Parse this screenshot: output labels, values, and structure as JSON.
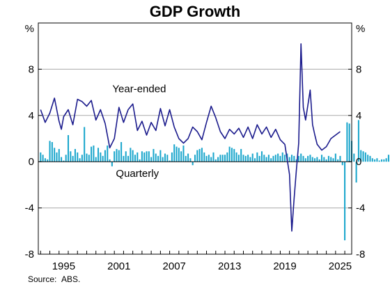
{
  "chart_data": {
    "type": "bar+line",
    "title": "GDP Growth",
    "y_unit_left": "%",
    "y_unit_right": "%",
    "ylim": [
      -8,
      12
    ],
    "yticks": [
      -8,
      -4,
      0,
      4,
      8
    ],
    "xlim": [
      1992.75,
      2026.75
    ],
    "xticks": [
      1995,
      2001,
      2007,
      2013,
      2019,
      2025
    ],
    "grid": true,
    "colors": {
      "year_ended": "#1a1a8c",
      "quarterly": "#1aa6cc",
      "grid": "#aaaaaa"
    },
    "series": [
      {
        "name": "Year-ended",
        "label_position": [
          2003.7,
          6.0
        ],
        "type": "line",
        "x": [
          1993.0,
          1993.5,
          1994.0,
          1994.5,
          1995.0,
          1995.25,
          1995.5,
          1996.0,
          1996.5,
          1997.0,
          1997.5,
          1998.0,
          1998.5,
          1999.0,
          1999.5,
          2000.0,
          2000.5,
          2001.0,
          2001.5,
          2002.0,
          2002.5,
          2003.0,
          2003.5,
          2004.0,
          2004.5,
          2005.0,
          2005.5,
          2006.0,
          2006.5,
          2007.0,
          2007.5,
          2008.0,
          2008.5,
          2009.0,
          2009.5,
          2010.0,
          2010.5,
          2011.0,
          2011.5,
          2012.0,
          2012.5,
          2013.0,
          2013.5,
          2014.0,
          2014.5,
          2015.0,
          2015.5,
          2016.0,
          2016.5,
          2017.0,
          2017.5,
          2018.0,
          2018.5,
          2019.0,
          2019.5,
          2020.0,
          2020.25,
          2020.5,
          2020.75,
          2021.0,
          2021.25,
          2021.5,
          2021.75,
          2022.0,
          2022.25,
          2022.5,
          2022.75,
          2023.0,
          2023.5,
          2024.0,
          2024.5,
          2025.0,
          2025.5
        ],
        "values": [
          4.5,
          3.4,
          4.2,
          5.5,
          3.5,
          2.8,
          3.9,
          4.5,
          3.2,
          5.4,
          5.2,
          4.8,
          5.3,
          3.6,
          4.5,
          3.3,
          1.2,
          2.0,
          4.7,
          3.4,
          4.5,
          5.0,
          2.7,
          3.5,
          2.3,
          3.4,
          2.7,
          4.6,
          3.1,
          4.5,
          3.0,
          2.0,
          1.6,
          2.0,
          3.0,
          2.6,
          1.9,
          3.4,
          4.8,
          3.8,
          2.6,
          2.0,
          2.8,
          2.4,
          2.9,
          2.1,
          3.0,
          2.0,
          3.2,
          2.4,
          3.0,
          2.1,
          2.8,
          1.9,
          1.5,
          -1.1,
          -6.0,
          -3.2,
          -0.7,
          1.6,
          10.2,
          4.7,
          3.6,
          4.9,
          6.2,
          3.2,
          2.3,
          1.5,
          1.0,
          1.3,
          2.0,
          2.3,
          2.6
        ]
      },
      {
        "name": "Quarterly",
        "label_position": [
          2003.5,
          -1.3
        ],
        "type": "bar",
        "x_start": 1993.0,
        "step": 0.25,
        "values": [
          0.8,
          0.6,
          0.3,
          0.2,
          1.8,
          1.7,
          1.2,
          0.8,
          1.1,
          0.4,
          0.1,
          0.6,
          2.3,
          0.9,
          0.5,
          1.1,
          0.8,
          0.3,
          0.6,
          3.0,
          0.7,
          0.6,
          1.3,
          1.4,
          0.4,
          1.2,
          0.8,
          0.5,
          1.0,
          1.4,
          0.2,
          -0.4,
          0.9,
          1.1,
          1.0,
          1.7,
          0.5,
          0.9,
          0.5,
          1.2,
          1.0,
          0.6,
          0.8,
          0.2,
          0.9,
          0.8,
          0.9,
          0.9,
          0.4,
          1.1,
          0.7,
          0.5,
          1.0,
          0.4,
          0.7,
          0.6,
          0.1,
          0.8,
          1.5,
          1.3,
          1.2,
          0.9,
          1.4,
          0.5,
          0.7,
          0.3,
          -0.3,
          0.6,
          1.0,
          1.1,
          1.2,
          0.8,
          0.5,
          0.6,
          0.4,
          0.8,
          0.2,
          0.4,
          0.6,
          0.6,
          0.6,
          0.8,
          1.3,
          1.2,
          1.1,
          0.8,
          0.6,
          1.1,
          0.6,
          0.5,
          0.6,
          0.4,
          0.7,
          0.3,
          0.8,
          0.5,
          0.9,
          0.6,
          0.4,
          0.6,
          0.3,
          0.5,
          0.6,
          0.7,
          0.5,
          0.8,
          0.6,
          0.7,
          0.4,
          0.6,
          0.5,
          0.2,
          0.5,
          0.7,
          0.5,
          0.3,
          0.5,
          0.6,
          0.4,
          0.3,
          0.4,
          0.2,
          0.6,
          0.4,
          0.2,
          0.5,
          0.4,
          0.3,
          0.7,
          0.2,
          0.5,
          -0.3,
          -6.8,
          3.4,
          3.3,
          1.8,
          0.7,
          -1.8,
          3.6,
          1.0,
          0.9,
          0.8,
          0.6,
          0.5,
          0.3,
          0.2,
          0.3,
          0.1,
          0.2,
          0.2,
          0.3,
          0.6,
          0.2,
          0.8
        ]
      }
    ],
    "source_label": "Source:",
    "source_value": "ABS."
  }
}
